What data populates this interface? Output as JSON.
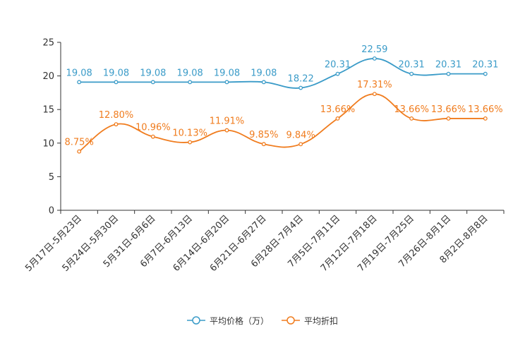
{
  "chart_data": {
    "type": "line",
    "categories": [
      "5月17日-5月23日",
      "5月24日-5月30日",
      "5月31日-6月6日",
      "6月7日-6月13日",
      "6月14日-6月20日",
      "6月21日-6月27日",
      "6月28日-7月4日",
      "7月5日-7月11日",
      "7月12日-7月18日",
      "7月19日-7月25日",
      "7月26日-8月1日",
      "8月2日-8月8日"
    ],
    "series": [
      {
        "name": "平均价格（万）",
        "color": "#3a9bc8",
        "values": [
          19.08,
          19.08,
          19.08,
          19.08,
          19.08,
          19.08,
          18.22,
          20.31,
          22.59,
          20.31,
          20.31,
          20.31
        ],
        "labels": [
          "19.08",
          "19.08",
          "19.08",
          "19.08",
          "19.08",
          "19.08",
          "18.22",
          "20.31",
          "22.59",
          "20.31",
          "20.31",
          "20.31"
        ]
      },
      {
        "name": "平均折扣",
        "color": "#f07c1e",
        "values": [
          8.75,
          12.8,
          10.96,
          10.13,
          11.91,
          9.85,
          9.84,
          13.66,
          17.31,
          13.66,
          13.66,
          13.66
        ],
        "labels": [
          "8.75%",
          "12.80%",
          "10.96%",
          "10.13%",
          "11.91%",
          "9.85%",
          "9.84%",
          "13.66%",
          "17.31%",
          "13.66%",
          "13.66%",
          "13.66%"
        ]
      }
    ],
    "y_ticks": [
      "0",
      "5",
      "10",
      "15",
      "20",
      "25"
    ],
    "ylim": [
      0,
      25
    ],
    "title": "",
    "xlabel": "",
    "ylabel": "",
    "legend_position": "bottom-center"
  },
  "legend": {
    "items": [
      "平均价格（万）",
      "平均折扣"
    ]
  }
}
